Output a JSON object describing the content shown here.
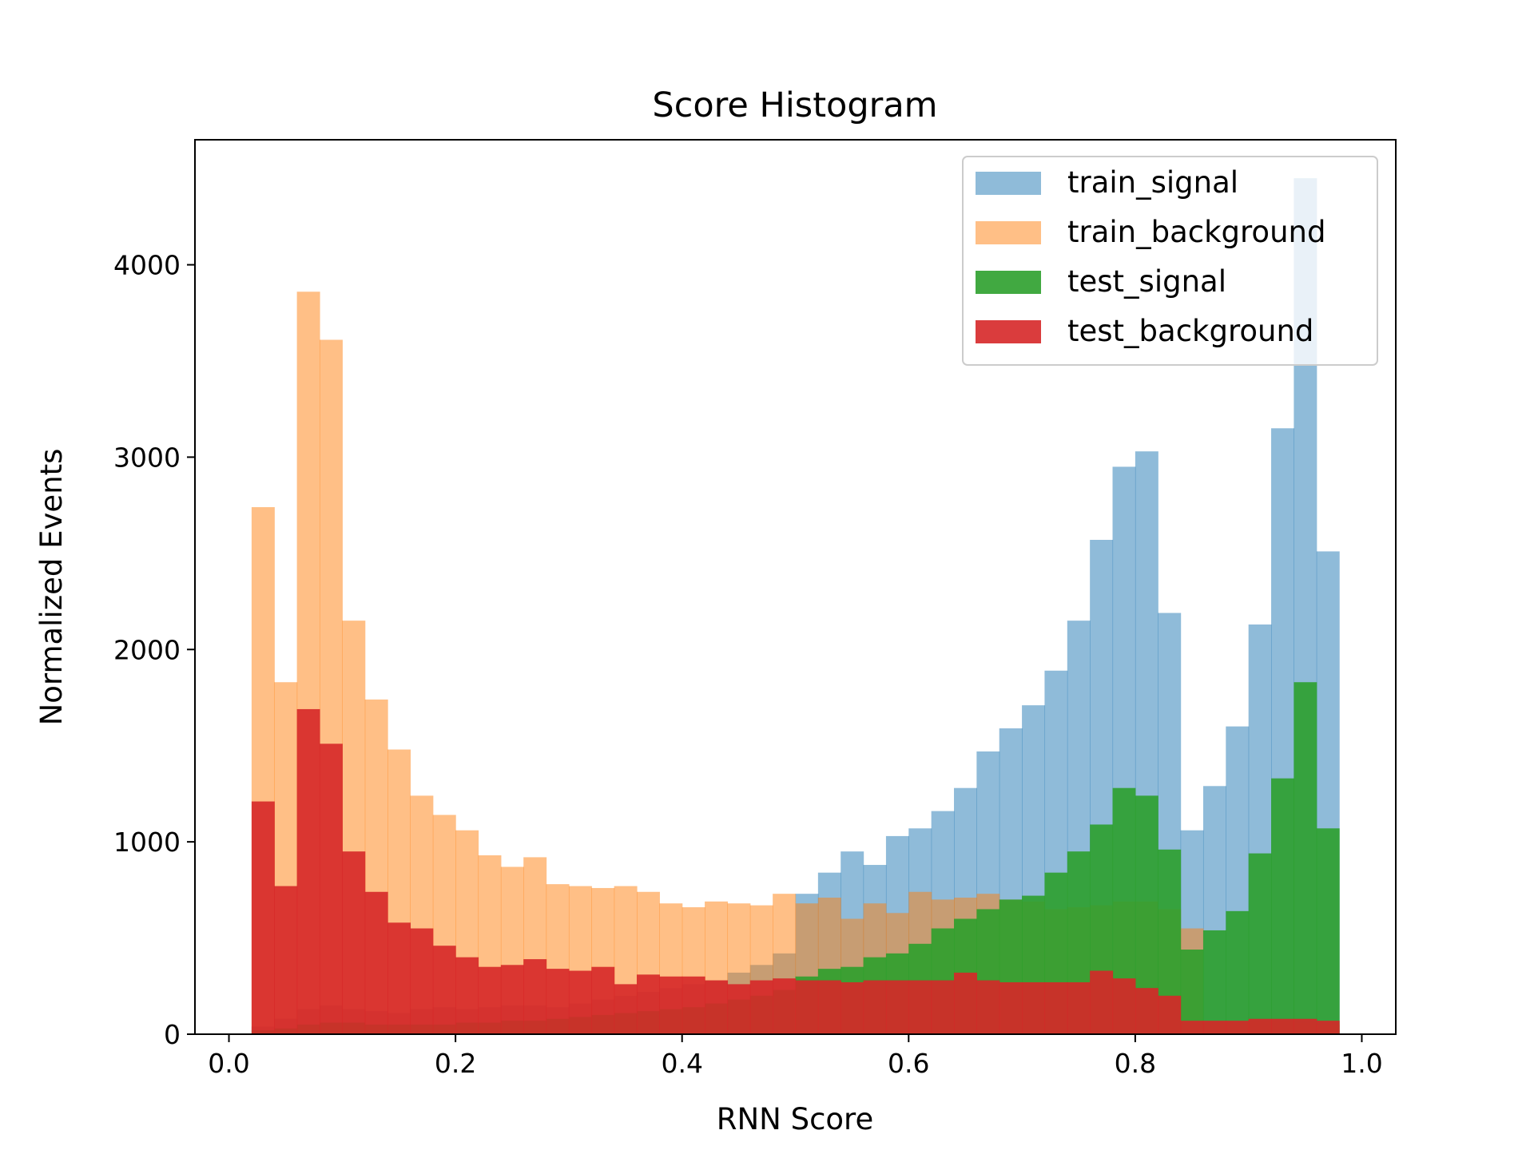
{
  "chart_data": {
    "type": "bar",
    "title": "Score Histogram",
    "xlabel": "RNN Score",
    "ylabel": "Normalized Events",
    "xlim": [
      -0.03,
      1.03
    ],
    "ylim": [
      0,
      4650
    ],
    "xticks": [
      0.0,
      0.2,
      0.4,
      0.6,
      0.8,
      1.0
    ],
    "xtick_labels": [
      "0.0",
      "0.2",
      "0.4",
      "0.6",
      "0.8",
      "1.0"
    ],
    "yticks": [
      0,
      1000,
      2000,
      3000,
      4000
    ],
    "ytick_labels": [
      "0",
      "1000",
      "2000",
      "3000",
      "4000"
    ],
    "grid": false,
    "legend_position": "top-right",
    "bin_edges": [
      0.02,
      0.04,
      0.06,
      0.08,
      0.1,
      0.12,
      0.14,
      0.16,
      0.18,
      0.2,
      0.22,
      0.24,
      0.26,
      0.28,
      0.3,
      0.32,
      0.34,
      0.36,
      0.38,
      0.4,
      0.42,
      0.44,
      0.46,
      0.48,
      0.5,
      0.52,
      0.54,
      0.56,
      0.58,
      0.6,
      0.62,
      0.64,
      0.66,
      0.68,
      0.7,
      0.72,
      0.74,
      0.76,
      0.78,
      0.8,
      0.82,
      0.84,
      0.86,
      0.88,
      0.9,
      0.92,
      0.94,
      0.96,
      0.98
    ],
    "series": [
      {
        "name": "train_signal",
        "color": "#1f77b4",
        "opacity": 0.5,
        "values": [
          40,
          80,
          130,
          150,
          130,
          120,
          110,
          130,
          140,
          130,
          140,
          150,
          150,
          140,
          160,
          180,
          200,
          220,
          240,
          260,
          280,
          320,
          360,
          420,
          730,
          840,
          950,
          880,
          1030,
          1070,
          1160,
          1280,
          1470,
          1590,
          1710,
          1890,
          2150,
          2570,
          2950,
          3030,
          2190,
          1060,
          1290,
          1600,
          2130,
          3150,
          4450,
          2510
        ]
      },
      {
        "name": "train_background",
        "color": "#ff7f0e",
        "opacity": 0.5,
        "values": [
          2740,
          1830,
          3860,
          3610,
          2150,
          1740,
          1480,
          1240,
          1140,
          1060,
          930,
          870,
          920,
          780,
          770,
          760,
          770,
          740,
          680,
          660,
          690,
          680,
          670,
          730,
          680,
          710,
          600,
          680,
          630,
          740,
          700,
          710,
          730,
          700,
          690,
          650,
          660,
          670,
          690,
          690,
          650,
          550,
          60,
          60,
          70,
          70,
          60,
          50
        ]
      },
      {
        "name": "test_signal",
        "color": "#2ca02c",
        "opacity": 0.9,
        "values": [
          20,
          30,
          50,
          60,
          60,
          50,
          50,
          50,
          50,
          60,
          60,
          70,
          70,
          80,
          90,
          100,
          110,
          120,
          130,
          140,
          160,
          180,
          200,
          230,
          300,
          340,
          350,
          400,
          420,
          470,
          550,
          600,
          650,
          700,
          720,
          840,
          950,
          1090,
          1280,
          1240,
          960,
          440,
          540,
          640,
          940,
          1330,
          1830,
          1070
        ]
      },
      {
        "name": "test_background",
        "color": "#d62728",
        "opacity": 0.9,
        "values": [
          1210,
          770,
          1690,
          1510,
          950,
          740,
          580,
          550,
          460,
          400,
          350,
          360,
          390,
          340,
          330,
          350,
          260,
          310,
          300,
          300,
          280,
          260,
          280,
          290,
          280,
          280,
          270,
          280,
          280,
          280,
          280,
          320,
          280,
          270,
          270,
          270,
          270,
          330,
          290,
          240,
          200,
          70,
          70,
          70,
          80,
          80,
          80,
          70
        ]
      }
    ]
  }
}
